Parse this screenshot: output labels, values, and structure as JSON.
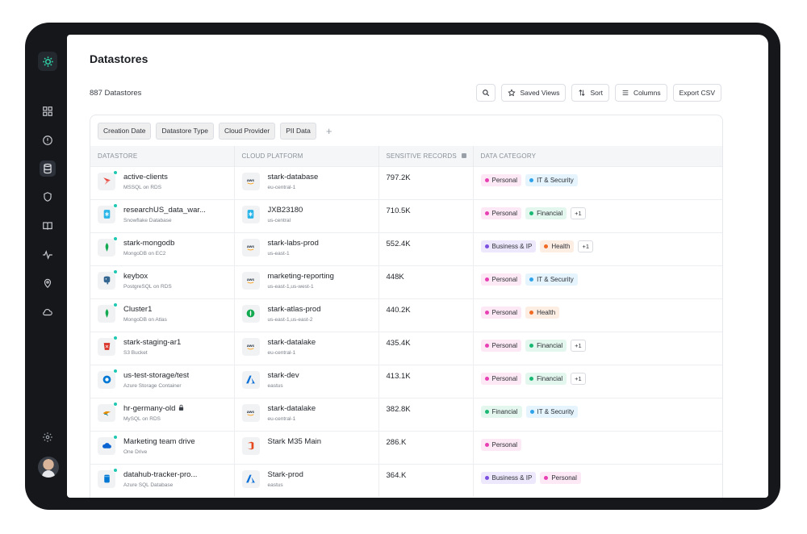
{
  "sidebar": {
    "logo_icon": "gear-logo-icon",
    "nav": [
      {
        "id": "dashboard",
        "icon": "grid-icon"
      },
      {
        "id": "issues",
        "icon": "alert-icon"
      },
      {
        "id": "datastores",
        "icon": "database-icon",
        "active": true
      },
      {
        "id": "shield",
        "icon": "shield-icon"
      },
      {
        "id": "book",
        "icon": "book-icon"
      },
      {
        "id": "activity",
        "icon": "activity-icon"
      },
      {
        "id": "location",
        "icon": "pin-icon"
      },
      {
        "id": "cloud",
        "icon": "cloud-icon"
      }
    ],
    "settings_icon": "settings-icon"
  },
  "page": {
    "title": "Datastores",
    "count_label": "887 Datastores"
  },
  "toolbar": {
    "saved_views": "Saved Views",
    "sort": "Sort",
    "columns": "Columns",
    "export": "Export CSV"
  },
  "filters": [
    "Creation Date",
    "Datastore Type",
    "Cloud Provider",
    "PII Data"
  ],
  "filters_add": "+",
  "columns": {
    "datastore": "DATASTORE",
    "cloud_platform": "CLOUD PLATFORM",
    "sensitive_records": "SENSITIVE RECORDS",
    "data_category": "DATA CATEGORY"
  },
  "category_colors": {
    "Personal": {
      "dot": "#e83fb3",
      "bg": "#fde8f5"
    },
    "IT & Security": {
      "dot": "#2ea3ea",
      "bg": "#e5f4fd"
    },
    "Financial": {
      "dot": "#19b873",
      "bg": "#e4f7ee"
    },
    "Business & IP": {
      "dot": "#7b4fe0",
      "bg": "#eee8fc"
    },
    "Health": {
      "dot": "#f06a24",
      "bg": "#fdeee4"
    }
  },
  "rows": [
    {
      "name": "active-clients",
      "type": "MSSQL on RDS",
      "icon": "mssql-icon",
      "color": "#e8453c",
      "platform": "stark-database",
      "region": "eu-central-1",
      "cloud_icon": "aws-icon",
      "records": "797.2K",
      "categories": [
        "Personal",
        "IT & Security"
      ],
      "more": ""
    },
    {
      "name": "researchUS_data_war...",
      "type": "Snowflake Database",
      "icon": "snowflake-icon",
      "color": "#29b5e8",
      "platform": "JXB23180",
      "region": "us-central",
      "cloud_icon": "snowflake-icon",
      "records": "710.5K",
      "categories": [
        "Personal",
        "Financial"
      ],
      "more": "+1"
    },
    {
      "name": "stark-mongodb",
      "type": "MongoDB on EC2",
      "icon": "mongodb-icon",
      "color": "#13aa52",
      "platform": "stark-labs-prod",
      "region": "us-east-1",
      "cloud_icon": "aws-icon",
      "records": "552.4K",
      "categories": [
        "Business & IP",
        "Health"
      ],
      "more": "+1"
    },
    {
      "name": "keybox",
      "type": "PostgreSQL on RDS",
      "icon": "postgresql-icon",
      "color": "#336791",
      "platform": "marketing-reporting",
      "region": "us-east-1,us-west-1",
      "cloud_icon": "aws-icon",
      "records": "448K",
      "categories": [
        "Personal",
        "IT & Security"
      ],
      "more": ""
    },
    {
      "name": "Cluster1",
      "type": "MongoDB on Atlas",
      "icon": "mongodb-icon",
      "color": "#13aa52",
      "platform": "stark-atlas-prod",
      "region": "us-east-1,us-east-2",
      "cloud_icon": "atlas-icon",
      "records": "440.2K",
      "categories": [
        "Personal",
        "Health"
      ],
      "more": ""
    },
    {
      "name": "stark-staging-ar1",
      "type": "S3 Bucket",
      "icon": "s3-bucket-icon",
      "color": "#d9352b",
      "platform": "stark-datalake",
      "region": "eu-central-1",
      "cloud_icon": "aws-icon",
      "records": "435.4K",
      "categories": [
        "Personal",
        "Financial"
      ],
      "more": "+1"
    },
    {
      "name": "us-test-storage/test",
      "type": "Azure Storage Container",
      "icon": "azure-storage-icon",
      "color": "#0078d4",
      "platform": "stark-dev",
      "region": "eastus",
      "cloud_icon": "azure-icon",
      "records": "413.1K",
      "categories": [
        "Personal",
        "Financial"
      ],
      "more": "+1"
    },
    {
      "name": "hr-germany-old",
      "type": "MySQL on RDS",
      "icon": "mysql-icon",
      "color": "#e48e00",
      "locked": true,
      "platform": "stark-datalake",
      "region": "eu-central-1",
      "cloud_icon": "aws-icon",
      "records": "382.8K",
      "categories": [
        "Financial",
        "IT & Security"
      ],
      "more": ""
    },
    {
      "name": "Marketing team drive",
      "type": "One Drive",
      "icon": "onedrive-icon",
      "color": "#0a64d2",
      "platform": "Stark M35 Main",
      "region": "",
      "cloud_icon": "office-icon",
      "records": "286.K",
      "categories": [
        "Personal"
      ],
      "more": ""
    },
    {
      "name": "datahub-tracker-pro...",
      "type": "Azure SQL Database",
      "icon": "azure-sql-icon",
      "color": "#0078d4",
      "platform": "Stark-prod",
      "region": "eastus",
      "cloud_icon": "azure-icon",
      "records": "364.K",
      "categories": [
        "Business & IP",
        "Personal"
      ],
      "more": ""
    }
  ]
}
